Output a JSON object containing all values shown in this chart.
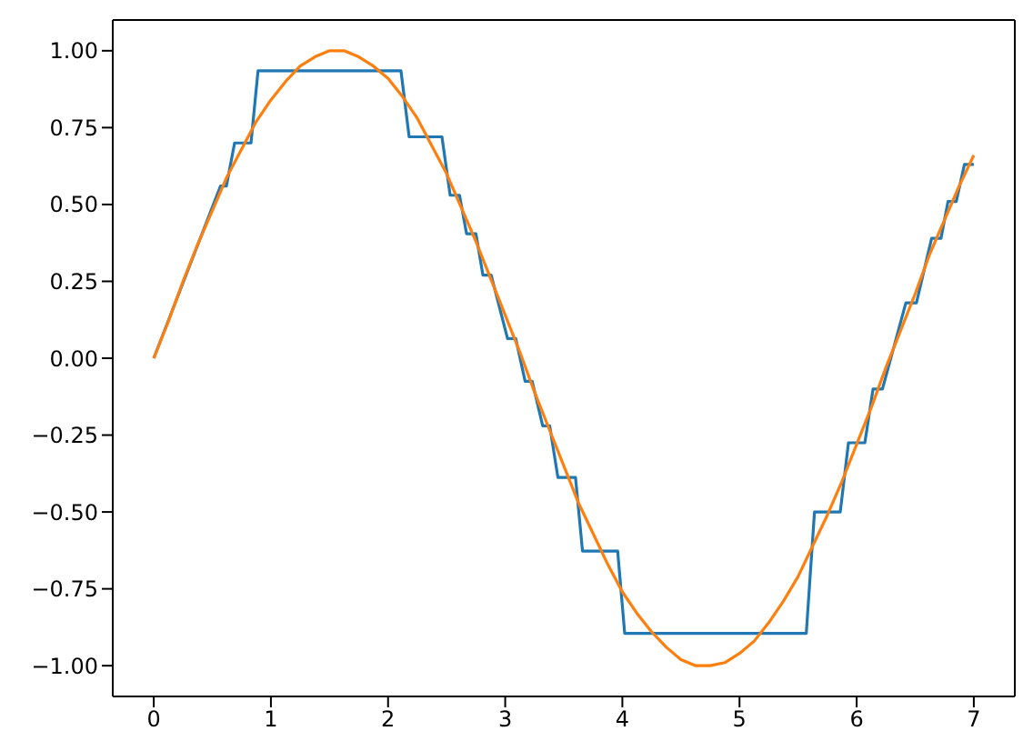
{
  "chart_data": {
    "type": "line",
    "xlim": [
      -0.35,
      7.35
    ],
    "ylim": [
      -1.1,
      1.1
    ],
    "xticks": [
      0,
      1,
      2,
      3,
      4,
      5,
      6,
      7
    ],
    "yticks": [
      {
        "value": -1,
        "label": "−1.00"
      },
      {
        "value": -0.75,
        "label": "−0.75"
      },
      {
        "value": -0.5,
        "label": "−0.50"
      },
      {
        "value": -0.25,
        "label": "−0.25"
      },
      {
        "value": 0,
        "label": "0.00"
      },
      {
        "value": 0.25,
        "label": "0.25"
      },
      {
        "value": 0.5,
        "label": "0.50"
      },
      {
        "value": 0.75,
        "label": "0.75"
      },
      {
        "value": 1,
        "label": "1.00"
      }
    ],
    "marker": "none",
    "line_style": "solid",
    "series": [
      {
        "color": "#1f77b4",
        "x": [
          0,
          0.57,
          0.62,
          0.69,
          0.83,
          0.89,
          2.11,
          2.18,
          2.46,
          2.53,
          2.61,
          2.67,
          2.75,
          2.81,
          2.88,
          3.02,
          3.09,
          3.17,
          3.23,
          3.32,
          3.38,
          3.45,
          3.6,
          3.66,
          3.96,
          4.02,
          5.57,
          5.64,
          5.86,
          5.93,
          6.07,
          6.14,
          6.22,
          6.42,
          6.51,
          6.64,
          6.72,
          6.78,
          6.85,
          6.92,
          7.0
        ],
        "values": [
          0,
          0.56,
          0.56,
          0.7,
          0.7,
          0.935,
          0.935,
          0.72,
          0.72,
          0.53,
          0.53,
          0.405,
          0.405,
          0.27,
          0.27,
          0.064,
          0.064,
          -0.075,
          -0.075,
          -0.22,
          -0.22,
          -0.388,
          -0.388,
          -0.627,
          -0.627,
          -0.895,
          -0.895,
          -0.5,
          -0.5,
          -0.275,
          -0.275,
          -0.1,
          -0.1,
          0.18,
          0.18,
          0.39,
          0.39,
          0.51,
          0.51,
          0.63,
          0.63
        ]
      },
      {
        "color": "#ff7f0e",
        "x": [
          0,
          0.125,
          0.25,
          0.375,
          0.5,
          0.625,
          0.75,
          0.875,
          1,
          1.125,
          1.25,
          1.375,
          1.5,
          1.625,
          1.75,
          1.875,
          2,
          2.125,
          2.25,
          2.375,
          2.5,
          2.625,
          2.75,
          2.875,
          3,
          3.125,
          3.25,
          3.375,
          3.5,
          3.625,
          3.75,
          3.875,
          4,
          4.125,
          4.25,
          4.375,
          4.5,
          4.625,
          4.75,
          4.875,
          5,
          5.125,
          5.25,
          5.375,
          5.5,
          5.625,
          5.75,
          5.875,
          6,
          6.125,
          6.25,
          6.375,
          6.5,
          6.625,
          6.75,
          6.875,
          7
        ],
        "values": [
          0,
          0.12,
          0.25,
          0.37,
          0.48,
          0.59,
          0.68,
          0.77,
          0.84,
          0.9,
          0.95,
          0.98,
          1.0,
          1.0,
          0.98,
          0.95,
          0.91,
          0.85,
          0.78,
          0.69,
          0.6,
          0.49,
          0.38,
          0.26,
          0.14,
          0.02,
          -0.11,
          -0.23,
          -0.35,
          -0.47,
          -0.57,
          -0.67,
          -0.76,
          -0.83,
          -0.89,
          -0.94,
          -0.98,
          -1.0,
          -1.0,
          -0.99,
          -0.96,
          -0.92,
          -0.86,
          -0.79,
          -0.71,
          -0.61,
          -0.51,
          -0.4,
          -0.28,
          -0.16,
          -0.03,
          0.09,
          0.21,
          0.34,
          0.45,
          0.56,
          0.66
        ]
      }
    ]
  }
}
